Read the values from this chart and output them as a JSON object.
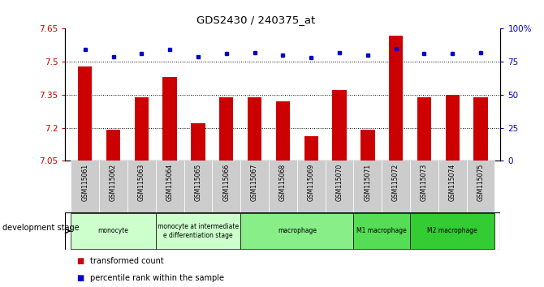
{
  "title": "GDS2430 / 240375_at",
  "samples": [
    "GSM115061",
    "GSM115062",
    "GSM115063",
    "GSM115064",
    "GSM115065",
    "GSM115066",
    "GSM115067",
    "GSM115068",
    "GSM115069",
    "GSM115070",
    "GSM115071",
    "GSM115072",
    "GSM115073",
    "GSM115074",
    "GSM115075"
  ],
  "bar_values": [
    7.48,
    7.19,
    7.34,
    7.43,
    7.22,
    7.34,
    7.34,
    7.32,
    7.16,
    7.37,
    7.19,
    7.62,
    7.34,
    7.35,
    7.34
  ],
  "percentile_values": [
    84,
    79,
    81,
    84,
    79,
    81,
    82,
    80,
    78,
    82,
    80,
    85,
    81,
    81,
    82
  ],
  "bar_color": "#cc0000",
  "percentile_color": "#0000cc",
  "ylim_left": [
    7.05,
    7.65
  ],
  "ylim_right": [
    0,
    100
  ],
  "yticks_left": [
    7.05,
    7.2,
    7.35,
    7.5,
    7.65
  ],
  "yticks_right": [
    0,
    25,
    50,
    75,
    100
  ],
  "ytick_labels_right": [
    "0",
    "25",
    "50",
    "75",
    "100%"
  ],
  "hlines": [
    7.2,
    7.35,
    7.5
  ],
  "groups": [
    {
      "label": "monocyte",
      "start": 0,
      "end": 2,
      "color": "#ccffcc"
    },
    {
      "label": "monocyte at intermediate\ne differentiation stage",
      "start": 3,
      "end": 5,
      "color": "#ccffcc"
    },
    {
      "label": "macrophage",
      "start": 6,
      "end": 9,
      "color": "#88ee88"
    },
    {
      "label": "M1 macrophage",
      "start": 10,
      "end": 11,
      "color": "#55dd55"
    },
    {
      "label": "M2 macrophage",
      "start": 12,
      "end": 14,
      "color": "#33cc33"
    }
  ],
  "legend_bar_label": "transformed count",
  "legend_dot_label": "percentile rank within the sample",
  "dev_stage_label": "development stage",
  "bg_color": "#ffffff",
  "plot_bg_color": "#ffffff",
  "tick_label_color_left": "#cc0000",
  "tick_label_color_right": "#0000cc",
  "sample_bg_color": "#cccccc"
}
